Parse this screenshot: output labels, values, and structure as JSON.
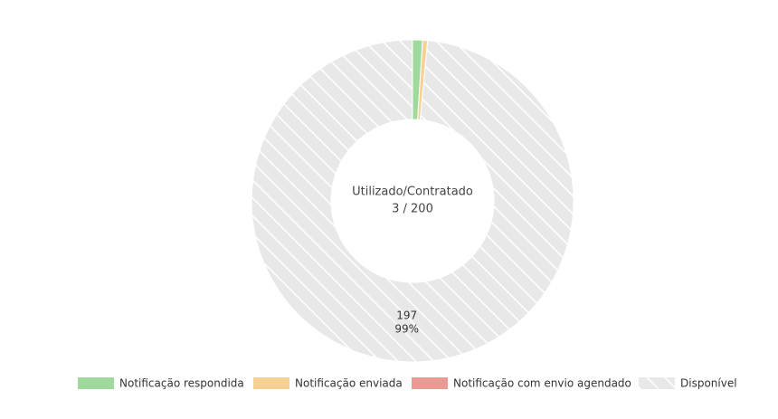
{
  "chart_data": {
    "type": "donut",
    "categories": [
      "Notificação respondida",
      "Notificação enviada",
      "Notificação com envio agendado",
      "Disponível"
    ],
    "values": [
      2,
      1,
      0,
      197
    ],
    "value_labels": [
      null,
      null,
      null,
      "99%"
    ],
    "colors": [
      "#a0d99c",
      "#f6d095",
      "#e99a93",
      "#e8e8e8"
    ],
    "hatched": [
      false,
      false,
      false,
      true
    ],
    "center_label": "Utilizado/Contratado",
    "center_value": "3 / 200",
    "legend": "bottom"
  }
}
